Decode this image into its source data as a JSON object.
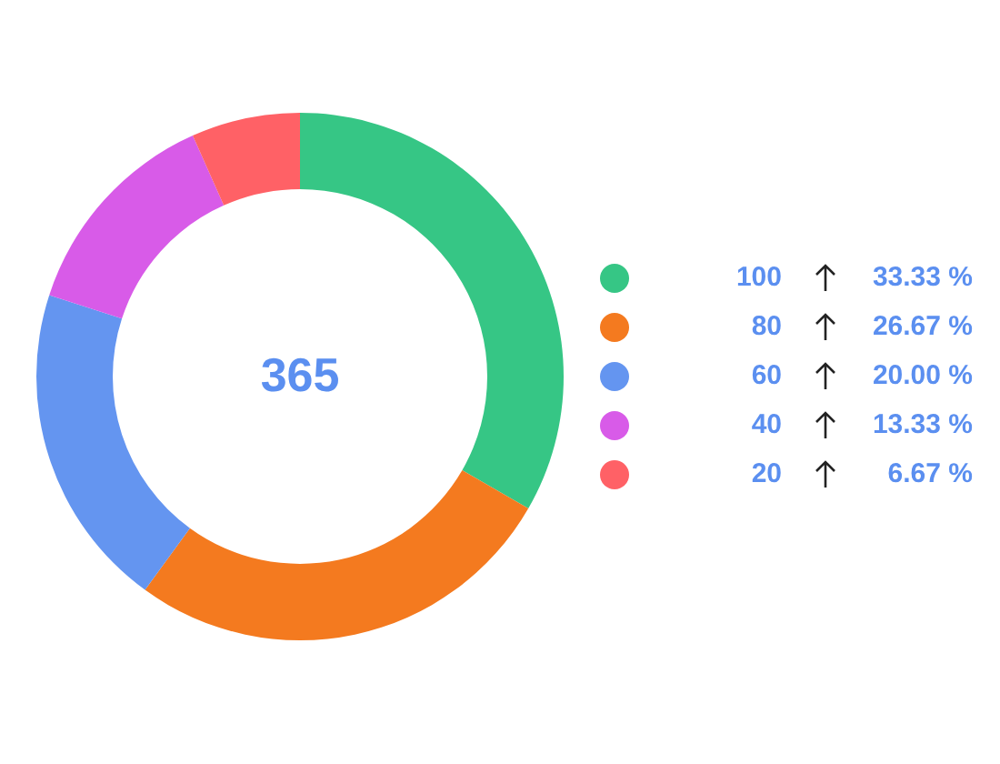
{
  "chart_data": {
    "type": "donut",
    "categories": [
      null,
      null,
      null,
      null,
      null
    ],
    "values": [
      33.33,
      26.67,
      20.0,
      13.33,
      6.67
    ],
    "colors": [
      "#36c685",
      "#f47a1f",
      "#6495f0",
      "#d85be8",
      "#ff6166"
    ],
    "annotations": [
      "365",
      "100",
      "80",
      "60",
      "40",
      "20",
      "33.33 %",
      "26.67 %",
      "20.00 %",
      "13.33 %",
      "6.67 %"
    ]
  }
}
